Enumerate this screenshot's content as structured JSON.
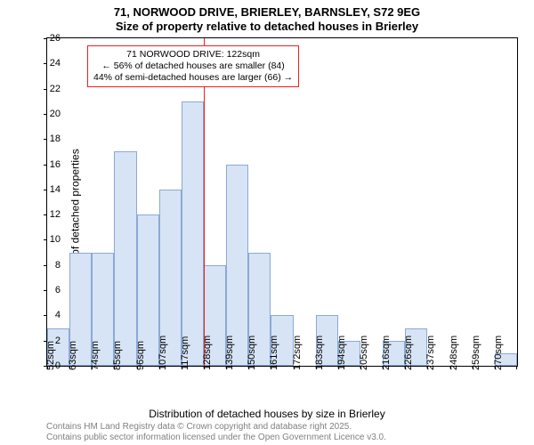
{
  "title": "71, NORWOOD DRIVE, BRIERLEY, BARNSLEY, S72 9EG",
  "subtitle": "Size of property relative to detached houses in Brierley",
  "ylabel": "Number of detached properties",
  "xlabel": "Distribution of detached houses by size in Brierley",
  "attribution_line1": "Contains HM Land Registry data © Crown copyright and database right 2025.",
  "attribution_line2": "Contains public sector information licensed under the Open Government Licence v3.0.",
  "chart": {
    "type": "histogram",
    "background_color": "#ffffff",
    "border_color": "#000000",
    "bar_fill": "#d7e4f5",
    "bar_stroke": "#8aa9d6",
    "ylim": [
      0,
      26
    ],
    "ytick_step": 2,
    "yticks": [
      0,
      2,
      4,
      6,
      8,
      10,
      12,
      14,
      16,
      18,
      20,
      22,
      24,
      26
    ],
    "categories": [
      "52sqm",
      "63sqm",
      "74sqm",
      "85sqm",
      "96sqm",
      "107sqm",
      "117sqm",
      "128sqm",
      "139sqm",
      "150sqm",
      "161sqm",
      "172sqm",
      "183sqm",
      "194sqm",
      "205sqm",
      "216sqm",
      "226sqm",
      "237sqm",
      "248sqm",
      "259sqm",
      "270sqm"
    ],
    "values": [
      3,
      9,
      9,
      17,
      12,
      14,
      21,
      8,
      16,
      9,
      4,
      0,
      4,
      2,
      0,
      2,
      3,
      0,
      0,
      0,
      1
    ],
    "bar_width": 1.0,
    "reference_line": {
      "index_between": 7,
      "color": "#ee2020",
      "width": 1
    },
    "callout": {
      "border_color": "#ee2020",
      "border_width": 1,
      "lines": [
        "71 NORWOOD DRIVE: 122sqm",
        "← 56% of detached houses are smaller (84)",
        "44% of semi-detached houses are larger (66) →"
      ]
    },
    "title_fontsize": 13,
    "label_fontsize": 12,
    "tick_fontsize": 11
  }
}
